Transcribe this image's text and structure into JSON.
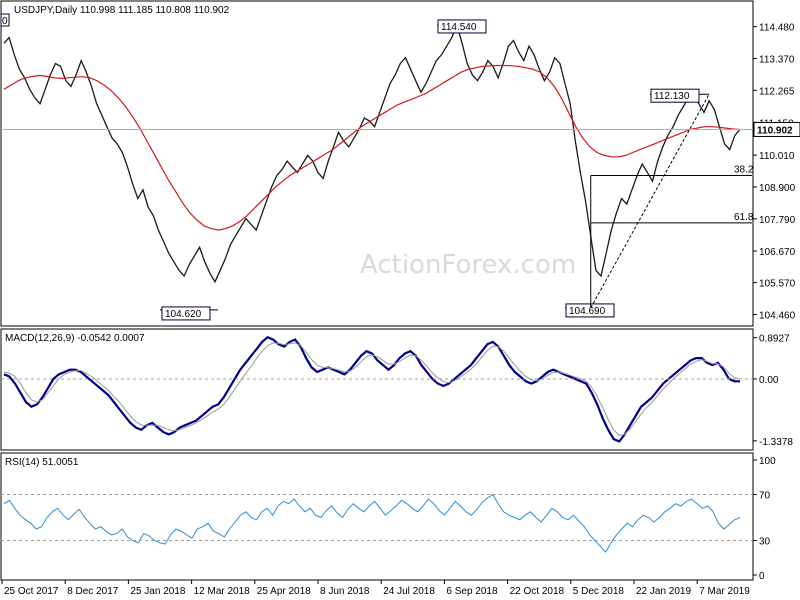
{
  "chart_data": [
    {
      "type": "line",
      "title": "USDJPY,Daily  110.998 111.185 110.808 110.902",
      "watermark": "ActionForex.com",
      "ylim": [
        104.2,
        115.2
      ],
      "y_ticks": [
        "114.480",
        "113.370",
        "112.265",
        "111.150",
        "110.010",
        "108.900",
        "107.790",
        "106.670",
        "105.570",
        "104.460"
      ],
      "y_tick_values": [
        114.48,
        113.37,
        112.265,
        111.15,
        110.01,
        108.9,
        107.79,
        106.67,
        105.57,
        104.46
      ],
      "current_price_label": "110.902",
      "current_price": 110.902,
      "x_ticks": [
        "25 Oct 2017",
        "8 Dec 2017",
        "25 Jan 2018",
        "12 Mar 2018",
        "25 Apr 2018",
        "8 Jun 2018",
        "24 Jul 2018",
        "6 Sep 2018",
        "22 Oct 2018",
        "5 Dec 2018",
        "22 Jan 2019",
        "7 Mar 2019"
      ],
      "series": [
        {
          "name": "",
          "color": "#1a1a1a",
          "values": [
            113.9,
            114.1,
            113.5,
            113.0,
            112.7,
            112.3,
            112.0,
            111.8,
            112.3,
            112.8,
            113.2,
            113.1,
            112.6,
            112.4,
            112.8,
            113.3,
            112.9,
            112.4,
            111.8,
            111.4,
            111.0,
            110.6,
            110.4,
            110.1,
            109.6,
            109.0,
            108.5,
            108.8,
            108.2,
            107.9,
            107.4,
            107.0,
            106.6,
            106.3,
            106.0,
            105.8,
            106.2,
            106.5,
            106.8,
            106.3,
            105.9,
            105.6,
            106.0,
            106.4,
            106.9,
            107.2,
            107.5,
            107.8,
            107.6,
            107.4,
            107.9,
            108.4,
            108.9,
            109.3,
            109.5,
            109.8,
            109.6,
            109.4,
            109.7,
            110.0,
            109.8,
            109.4,
            109.2,
            109.8,
            110.3,
            110.8,
            110.5,
            110.3,
            110.6,
            110.9,
            111.3,
            111.2,
            111.0,
            111.5,
            112.0,
            112.5,
            112.8,
            113.2,
            113.4,
            113.0,
            112.6,
            112.2,
            112.5,
            112.9,
            113.3,
            113.5,
            113.8,
            114.1,
            114.54,
            113.9,
            113.2,
            112.8,
            112.6,
            112.9,
            113.3,
            113.1,
            112.7,
            113.2,
            113.8,
            114.0,
            113.6,
            113.3,
            113.8,
            113.5,
            113.0,
            112.6,
            112.9,
            113.4,
            113.2,
            112.5,
            111.8,
            110.5,
            109.4,
            108.4,
            107.2,
            106.0,
            105.8,
            106.6,
            107.4,
            108.0,
            108.5,
            108.3,
            108.8,
            109.3,
            109.7,
            109.4,
            109.1,
            109.8,
            110.3,
            110.7,
            111.0,
            111.4,
            111.7,
            112.0,
            112.13,
            111.8,
            111.5,
            111.9,
            111.6,
            111.0,
            110.4,
            110.2,
            110.7,
            110.9
          ]
        },
        {
          "name": "",
          "color": "#d01a1a",
          "values": [
            112.3,
            112.45,
            112.6,
            112.7,
            112.75,
            112.78,
            112.75,
            112.7,
            112.68,
            112.7,
            112.72,
            112.74,
            112.7,
            112.6,
            112.45,
            112.25,
            112.0,
            111.7,
            111.35,
            110.95,
            110.5,
            110.05,
            109.6,
            109.15,
            108.75,
            108.35,
            108.0,
            107.75,
            107.55,
            107.45,
            107.4,
            107.45,
            107.55,
            107.7,
            107.9,
            108.15,
            108.4,
            108.65,
            108.9,
            109.1,
            109.3,
            109.45,
            109.6,
            109.75,
            109.9,
            110.05,
            110.2,
            110.4,
            110.6,
            110.8,
            111.0,
            111.15,
            111.3,
            111.45,
            111.6,
            111.75,
            111.85,
            111.95,
            112.05,
            112.15,
            112.3,
            112.45,
            112.6,
            112.75,
            112.9,
            113.0,
            113.05,
            113.1,
            113.12,
            113.13,
            113.13,
            113.12,
            113.1,
            113.05,
            113.0,
            112.9,
            112.7,
            112.4,
            112.0,
            111.5,
            111.0,
            110.6,
            110.3,
            110.1,
            110.0,
            109.95,
            109.95,
            110.0,
            110.1,
            110.2,
            110.3,
            110.4,
            110.5,
            110.6,
            110.7,
            110.8,
            110.9,
            110.95,
            111.0,
            111.0,
            110.98,
            110.95,
            110.92,
            110.9
          ]
        }
      ],
      "levels": [
        {
          "label": "114.540",
          "value": 114.54
        },
        {
          "label": "104.620",
          "value": 104.62
        },
        {
          "label": "104.690",
          "value": 104.69
        },
        {
          "label": "112.130",
          "value": 112.13
        },
        {
          "label": "38.2",
          "value": 109.3
        },
        {
          "label": "61.8",
          "value": 107.65
        }
      ],
      "left_label": "0"
    },
    {
      "type": "line",
      "title": "MACD(12,26,9) -0.0542 0.0007",
      "ylim": [
        -1.45,
        0.95
      ],
      "y_ticks": [
        "0.8927",
        "0.00",
        "-1.3378"
      ],
      "y_tick_values": [
        0.8927,
        0.0,
        -1.3378
      ],
      "series": [
        {
          "name": "",
          "color": "#00008b",
          "values": [
            0.1,
            0.05,
            -0.1,
            -0.3,
            -0.5,
            -0.6,
            -0.55,
            -0.4,
            -0.2,
            0.0,
            0.1,
            0.15,
            0.2,
            0.2,
            0.15,
            0.05,
            -0.05,
            -0.15,
            -0.25,
            -0.35,
            -0.5,
            -0.65,
            -0.8,
            -0.95,
            -1.05,
            -1.1,
            -1.0,
            -0.95,
            -1.05,
            -1.15,
            -1.2,
            -1.15,
            -1.05,
            -1.0,
            -0.95,
            -0.9,
            -0.8,
            -0.7,
            -0.6,
            -0.55,
            -0.4,
            -0.2,
            0.0,
            0.2,
            0.35,
            0.5,
            0.65,
            0.8,
            0.9,
            0.85,
            0.75,
            0.7,
            0.8,
            0.85,
            0.7,
            0.45,
            0.25,
            0.15,
            0.2,
            0.25,
            0.2,
            0.15,
            0.1,
            0.2,
            0.35,
            0.5,
            0.6,
            0.55,
            0.4,
            0.3,
            0.2,
            0.3,
            0.45,
            0.55,
            0.6,
            0.5,
            0.3,
            0.15,
            0.0,
            -0.1,
            -0.15,
            -0.1,
            0.0,
            0.1,
            0.2,
            0.3,
            0.45,
            0.6,
            0.75,
            0.8,
            0.7,
            0.5,
            0.3,
            0.15,
            0.05,
            -0.05,
            -0.1,
            -0.05,
            0.05,
            0.15,
            0.2,
            0.15,
            0.1,
            0.05,
            0.0,
            -0.05,
            -0.1,
            -0.3,
            -0.55,
            -0.85,
            -1.1,
            -1.3,
            -1.35,
            -1.2,
            -1.0,
            -0.8,
            -0.6,
            -0.5,
            -0.4,
            -0.25,
            -0.1,
            0.0,
            0.1,
            0.2,
            0.3,
            0.4,
            0.45,
            0.45,
            0.35,
            0.3,
            0.35,
            0.2,
            0.0,
            -0.05,
            -0.05
          ]
        },
        {
          "name": "",
          "color": "#999999",
          "values": [
            0.15,
            0.12,
            0.05,
            -0.1,
            -0.3,
            -0.45,
            -0.5,
            -0.45,
            -0.3,
            -0.15,
            0.0,
            0.1,
            0.15,
            0.18,
            0.18,
            0.12,
            0.05,
            -0.05,
            -0.15,
            -0.25,
            -0.38,
            -0.5,
            -0.65,
            -0.8,
            -0.92,
            -1.0,
            -1.0,
            -1.0,
            -1.0,
            -1.05,
            -1.1,
            -1.12,
            -1.1,
            -1.05,
            -1.0,
            -0.95,
            -0.88,
            -0.8,
            -0.72,
            -0.65,
            -0.55,
            -0.4,
            -0.22,
            -0.05,
            0.12,
            0.28,
            0.45,
            0.6,
            0.72,
            0.78,
            0.77,
            0.74,
            0.76,
            0.78,
            0.72,
            0.58,
            0.42,
            0.3,
            0.25,
            0.24,
            0.22,
            0.19,
            0.15,
            0.17,
            0.25,
            0.37,
            0.48,
            0.52,
            0.48,
            0.4,
            0.32,
            0.32,
            0.38,
            0.45,
            0.52,
            0.5,
            0.4,
            0.27,
            0.13,
            0.02,
            -0.06,
            -0.08,
            -0.04,
            0.04,
            0.12,
            0.21,
            0.33,
            0.47,
            0.61,
            0.71,
            0.7,
            0.6,
            0.45,
            0.3,
            0.17,
            0.06,
            -0.02,
            -0.04,
            0.0,
            0.08,
            0.14,
            0.15,
            0.12,
            0.08,
            0.04,
            0.0,
            -0.05,
            -0.18,
            -0.38,
            -0.62,
            -0.88,
            -1.1,
            -1.22,
            -1.2,
            -1.08,
            -0.92,
            -0.76,
            -0.62,
            -0.5,
            -0.36,
            -0.22,
            -0.1,
            0.02,
            0.12,
            0.22,
            0.32,
            0.38,
            0.42,
            0.38,
            0.33,
            0.33,
            0.26,
            0.12,
            0.03,
            0.0
          ]
        }
      ]
    },
    {
      "type": "line",
      "title": "RSI(14) 51.0051",
      "ylim": [
        0,
        100
      ],
      "y_ticks": [
        "100",
        "70",
        "30",
        "0"
      ],
      "y_tick_values": [
        100,
        70,
        30,
        0
      ],
      "levels": [
        {
          "label": "70",
          "value": 70
        },
        {
          "label": "30",
          "value": 30
        }
      ],
      "series": [
        {
          "name": "",
          "color": "#2a8fd8",
          "values": [
            62,
            65,
            58,
            52,
            48,
            45,
            40,
            42,
            50,
            55,
            58,
            52,
            48,
            53,
            57,
            50,
            45,
            40,
            42,
            38,
            35,
            36,
            40,
            33,
            30,
            28,
            36,
            34,
            30,
            28,
            27,
            35,
            40,
            38,
            35,
            32,
            40,
            42,
            45,
            38,
            36,
            33,
            40,
            46,
            52,
            55,
            50,
            48,
            55,
            58,
            52,
            60,
            64,
            62,
            66,
            60,
            55,
            58,
            52,
            50,
            56,
            60,
            54,
            50,
            57,
            62,
            58,
            55,
            60,
            64,
            58,
            52,
            56,
            60,
            65,
            62,
            58,
            55,
            60,
            66,
            62,
            56,
            52,
            58,
            64,
            60,
            55,
            52,
            57,
            63,
            67,
            70,
            62,
            55,
            52,
            50,
            48,
            52,
            55,
            50,
            46,
            52,
            58,
            55,
            50,
            48,
            52,
            47,
            42,
            35,
            30,
            25,
            20,
            28,
            35,
            40,
            45,
            42,
            48,
            52,
            50,
            46,
            50,
            55,
            58,
            62,
            60,
            64,
            66,
            62,
            58,
            60,
            55,
            45,
            40,
            44,
            48,
            50
          ]
        }
      ]
    }
  ]
}
